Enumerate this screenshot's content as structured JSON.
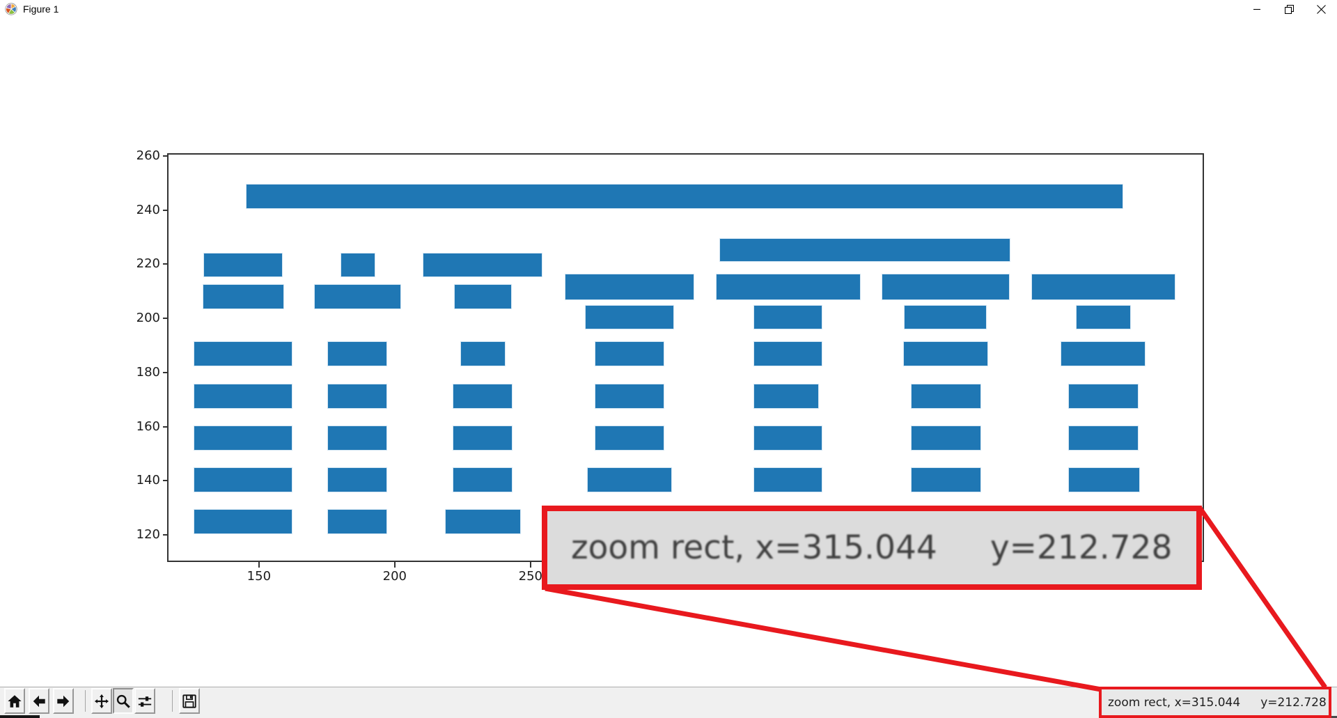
{
  "window": {
    "title": "Figure 1",
    "controls": {
      "minimize": "minimize",
      "restore": "restore-down",
      "close": "close"
    }
  },
  "chart_data": {
    "type": "bar",
    "subtype": "horizontal-broken-bars",
    "title": "",
    "xlabel": "",
    "ylabel": "",
    "xlim": [
      116.7,
      497.5
    ],
    "ylim": [
      110.5,
      260.5
    ],
    "x_ticks": [
      150,
      200,
      250
    ],
    "y_ticks": [
      120,
      140,
      160,
      180,
      200,
      220,
      240,
      260
    ],
    "grid": false,
    "bar_color": "#1f77b4",
    "bars_format": "[x_start, x_end, y_bottom, y_top]",
    "bars": [
      [
        145.1,
        468.2,
        240.5,
        249.8
      ],
      [
        129.4,
        158.7,
        215.2,
        224.1
      ],
      [
        129.2,
        159.2,
        203.5,
        212.7
      ],
      [
        125.9,
        162.4,
        182.2,
        191.5
      ],
      [
        125.9,
        162.4,
        166.6,
        175.8
      ],
      [
        125.9,
        162.4,
        151.1,
        160.5
      ],
      [
        125.9,
        162.4,
        135.8,
        145.0
      ],
      [
        125.9,
        162.4,
        120.4,
        129.6
      ],
      [
        180.0,
        192.8,
        215.2,
        224.1
      ],
      [
        170.3,
        202.4,
        203.5,
        212.7
      ],
      [
        175.1,
        197.2,
        182.2,
        191.5
      ],
      [
        175.1,
        197.2,
        166.6,
        175.8
      ],
      [
        175.1,
        197.2,
        151.1,
        160.5
      ],
      [
        175.1,
        197.2,
        135.8,
        145.0
      ],
      [
        175.1,
        197.2,
        120.4,
        129.6
      ],
      [
        210.3,
        254.3,
        215.2,
        224.1
      ],
      [
        221.9,
        243.2,
        203.5,
        212.7
      ],
      [
        224.1,
        240.9,
        182.2,
        191.5
      ],
      [
        221.3,
        243.5,
        166.6,
        175.8
      ],
      [
        221.3,
        243.5,
        151.1,
        160.5
      ],
      [
        221.3,
        243.5,
        135.8,
        145.0
      ],
      [
        218.5,
        246.5,
        120.4,
        129.6
      ],
      [
        262.6,
        310.4,
        206.7,
        216.4
      ],
      [
        270.0,
        302.9,
        195.9,
        204.8
      ],
      [
        273.7,
        299.2,
        182.2,
        191.5
      ],
      [
        273.7,
        299.2,
        166.6,
        175.8
      ],
      [
        273.7,
        299.2,
        151.1,
        160.5
      ],
      [
        270.9,
        302.0,
        135.8,
        145.0
      ],
      [
        319.5,
        426.7,
        221.0,
        229.7
      ],
      [
        318.2,
        371.5,
        206.7,
        216.4
      ],
      [
        332.0,
        357.6,
        195.9,
        204.8
      ],
      [
        332.1,
        357.4,
        182.2,
        191.5
      ],
      [
        332.1,
        356.2,
        166.6,
        175.8
      ],
      [
        332.1,
        357.4,
        151.1,
        160.5
      ],
      [
        332.0,
        357.6,
        135.8,
        145.0
      ],
      [
        379.2,
        426.4,
        206.7,
        216.4
      ],
      [
        387.5,
        418.0,
        195.9,
        204.8
      ],
      [
        387.3,
        418.5,
        182.2,
        191.5
      ],
      [
        390.1,
        416.0,
        166.6,
        175.8
      ],
      [
        390.1,
        416.0,
        151.1,
        160.5
      ],
      [
        390.1,
        416.0,
        135.8,
        145.0
      ],
      [
        434.4,
        487.6,
        206.7,
        216.4
      ],
      [
        450.9,
        471.1,
        195.9,
        204.8
      ],
      [
        445.1,
        476.4,
        182.2,
        191.5
      ],
      [
        448.1,
        473.8,
        166.6,
        175.8
      ],
      [
        448.1,
        473.8,
        151.1,
        160.5
      ],
      [
        448.1,
        474.4,
        135.8,
        145.0
      ]
    ]
  },
  "toolbar": {
    "buttons": [
      {
        "name": "home",
        "active": false
      },
      {
        "name": "back",
        "active": false
      },
      {
        "name": "forward",
        "active": false
      },
      {
        "name": "pan",
        "active": false
      },
      {
        "name": "zoom",
        "active": true
      },
      {
        "name": "configure-subplots",
        "active": false
      },
      {
        "name": "save",
        "active": false
      }
    ],
    "status_part1": "zoom rect, x=315.044",
    "status_part2": "y=212.728"
  },
  "annotation": {
    "red": "#e8191e",
    "magnified_part1": "zoom rect, x=315.044",
    "magnified_part2": "y=212.728"
  }
}
